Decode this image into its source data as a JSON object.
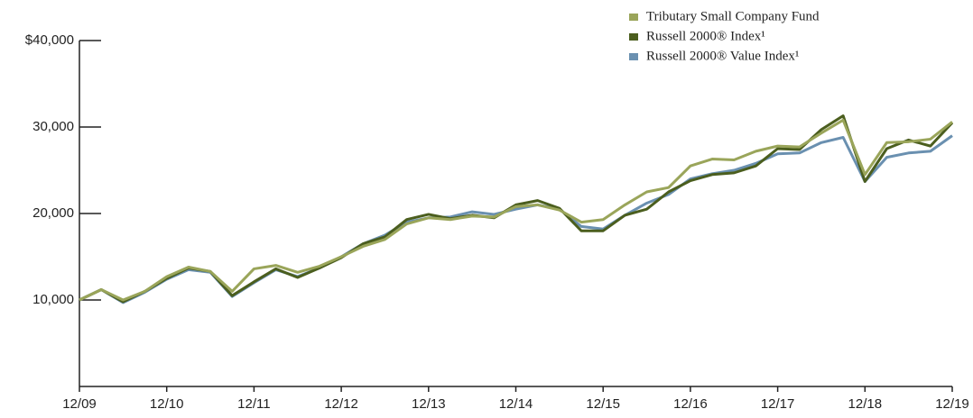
{
  "chart_data": {
    "type": "line",
    "x": [
      "12/09",
      "03/10",
      "06/10",
      "09/10",
      "12/10",
      "03/11",
      "06/11",
      "09/11",
      "12/11",
      "03/12",
      "06/12",
      "09/12",
      "12/12",
      "03/13",
      "06/13",
      "09/13",
      "12/13",
      "03/14",
      "06/14",
      "09/14",
      "12/14",
      "03/15",
      "06/15",
      "09/15",
      "12/15",
      "03/16",
      "06/16",
      "09/16",
      "12/16",
      "03/17",
      "06/17",
      "09/17",
      "12/17",
      "03/18",
      "06/18",
      "09/18",
      "12/18",
      "03/19",
      "06/19",
      "09/19",
      "12/19"
    ],
    "series": [
      {
        "name": "Tributary Small Company Fund",
        "color": "#9aa55a",
        "values": [
          10000,
          11200,
          10000,
          11000,
          12700,
          13800,
          13300,
          11000,
          13600,
          14000,
          13200,
          13900,
          15000,
          16200,
          17000,
          18800,
          19500,
          19300,
          19700,
          19600,
          20800,
          21000,
          20400,
          19000,
          19300,
          21000,
          22500,
          23000,
          25500,
          26300,
          26200,
          27200,
          27800,
          27700,
          29300,
          30800,
          24500,
          28200,
          28300,
          28600,
          30600
        ]
      },
      {
        "name": "Russell 2000® Index¹",
        "color": "#4b5e1e",
        "values": [
          10000,
          11200,
          9800,
          11000,
          12500,
          13700,
          13300,
          10500,
          12100,
          13600,
          12600,
          13700,
          14900,
          16500,
          17300,
          19300,
          19900,
          19400,
          19800,
          19500,
          21000,
          21500,
          20600,
          18000,
          18000,
          19800,
          20500,
          22500,
          23800,
          24500,
          24700,
          25500,
          27500,
          27400,
          29700,
          31300,
          23700,
          27500,
          28500,
          27800,
          30500
        ]
      },
      {
        "name": "Russell 2000® Value Index¹",
        "color": "#6a90b0",
        "values": [
          10000,
          11200,
          9700,
          10900,
          12400,
          13500,
          13200,
          10400,
          12000,
          13500,
          12700,
          13700,
          15000,
          16500,
          17500,
          19000,
          19500,
          19600,
          20200,
          19900,
          20500,
          21000,
          20500,
          18500,
          18200,
          19800,
          21200,
          22200,
          24000,
          24600,
          25000,
          25800,
          26900,
          27000,
          28200,
          28800,
          23700,
          26500,
          27000,
          27200,
          29000
        ]
      }
    ],
    "ylim": [
      0,
      40000
    ],
    "yticks": [
      {
        "value": 10000,
        "label": "10,000"
      },
      {
        "value": 20000,
        "label": "20,000"
      },
      {
        "value": 30000,
        "label": "30,000"
      },
      {
        "value": 40000,
        "label": "$40,000"
      }
    ],
    "xticks": [
      "12/09",
      "12/10",
      "12/11",
      "12/12",
      "12/13",
      "12/14",
      "12/15",
      "12/16",
      "12/17",
      "12/18",
      "12/19"
    ]
  }
}
